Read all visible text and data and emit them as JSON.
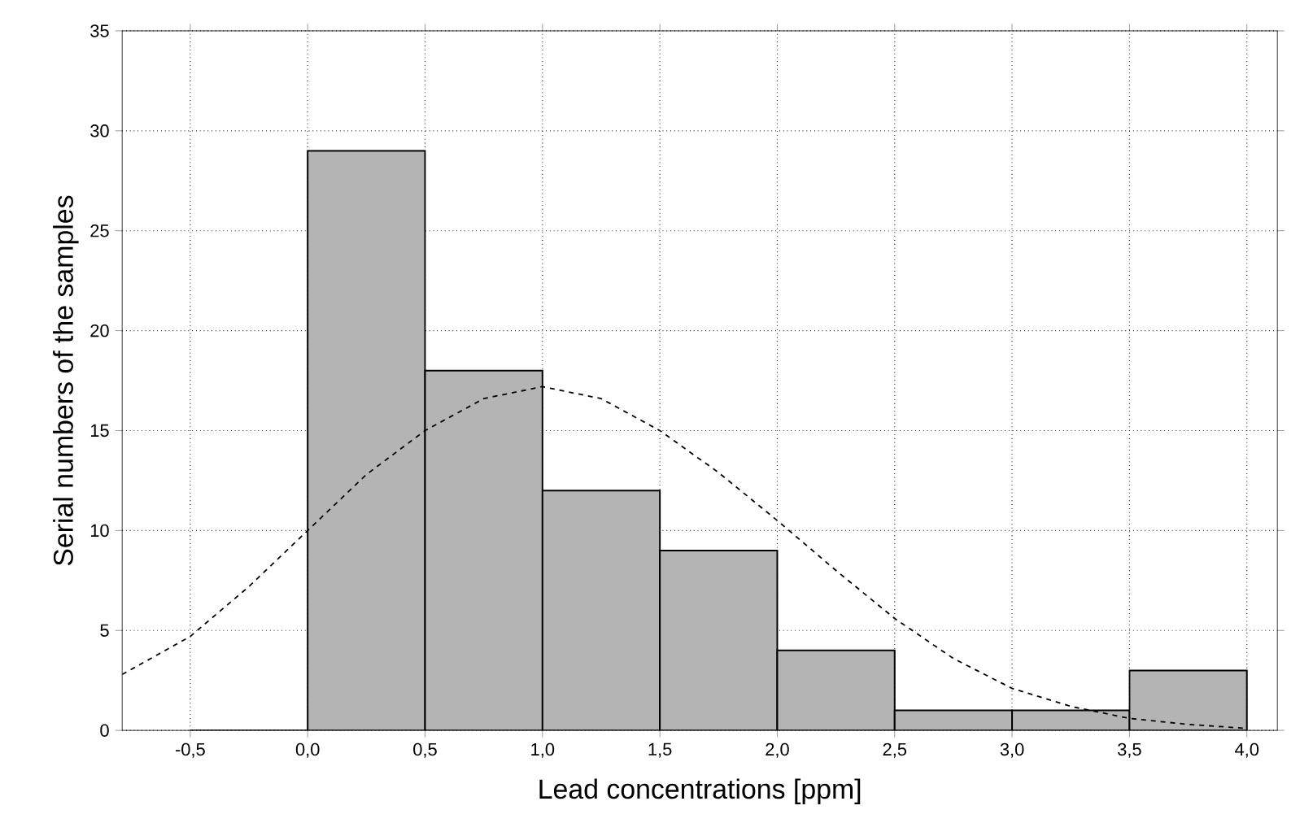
{
  "chart_data": {
    "type": "histogram",
    "xlabel": "Lead concentrations [ppm]",
    "ylabel": "Serial numbers of the samples",
    "bins": [
      -0.5,
      0.0,
      0.5,
      1.0,
      1.5,
      2.0,
      2.5,
      3.0,
      3.5,
      4.0
    ],
    "values": [
      0,
      29,
      18,
      12,
      9,
      4,
      1,
      1,
      3
    ],
    "color": "#b4b4b4",
    "series": [
      {
        "type": "line",
        "line_style": "dashed",
        "color": "#000000",
        "x": [
          -0.79,
          -0.5,
          -0.25,
          0.0,
          0.25,
          0.5,
          0.75,
          1.0,
          1.25,
          1.5,
          1.75,
          2.0,
          2.25,
          2.5,
          2.75,
          3.0,
          3.25,
          3.5,
          3.75,
          4.0
        ],
        "values": [
          2.8,
          4.7,
          7.2,
          10,
          12.8,
          15,
          16.6,
          17.2,
          16.6,
          15,
          12.9,
          10.5,
          8,
          5.6,
          3.6,
          2.1,
          1.2,
          0.6,
          0.3,
          0.1
        ]
      }
    ],
    "xlim": [
      -0.79,
      4.13
    ],
    "ylim": [
      0,
      35
    ],
    "xticks": [
      {
        "value": -0.5,
        "label": "-0,5"
      },
      {
        "value": 0.0,
        "label": "0,0"
      },
      {
        "value": 0.5,
        "label": "0,5"
      },
      {
        "value": 1.0,
        "label": "1,0"
      },
      {
        "value": 1.5,
        "label": "1,5"
      },
      {
        "value": 2.0,
        "label": "2,0"
      },
      {
        "value": 2.5,
        "label": "2,5"
      },
      {
        "value": 3.0,
        "label": "3,0"
      },
      {
        "value": 3.5,
        "label": "3,5"
      },
      {
        "value": 4.0,
        "label": "4,0"
      }
    ],
    "yticks": [
      0,
      5,
      10,
      15,
      20,
      25,
      30,
      35
    ],
    "grid": true
  }
}
